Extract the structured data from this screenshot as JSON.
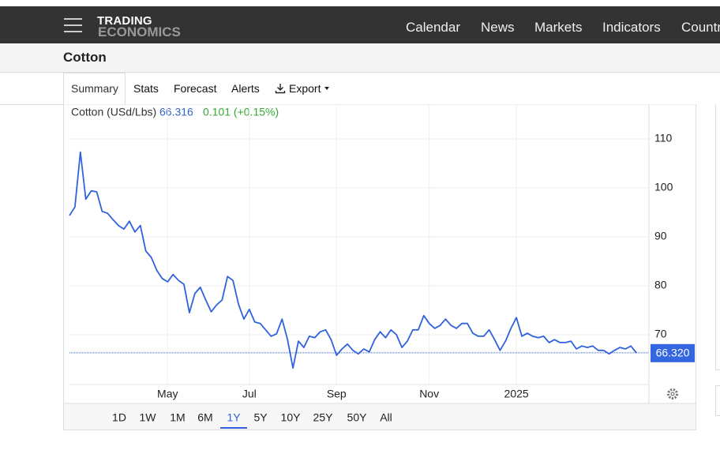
{
  "nav": {
    "logo_top": "TRADING",
    "logo_bottom": "ECONOMICS",
    "links": [
      "Calendar",
      "News",
      "Markets",
      "Indicators",
      "Countries"
    ]
  },
  "title": "Cotton",
  "tabs": [
    "Summary",
    "Stats",
    "Forecast",
    "Alerts",
    "Export"
  ],
  "selected_tab": "Summary",
  "chart_data": {
    "type": "line",
    "legend": {
      "name": "Cotton (USd/Lbs)",
      "price": "66.316",
      "change": "0.101 (+0.15%)"
    },
    "values": [
      94.35,
      96.1,
      107.3,
      97.7,
      99.4,
      99.2,
      95.2,
      94.8,
      93.5,
      92.3,
      91.6,
      93.2,
      91.0,
      92.3,
      87.1,
      85.8,
      83.2,
      81.5,
      80.8,
      82.3,
      81.1,
      80.3,
      74.5,
      78.4,
      79.7,
      77.1,
      74.7,
      76.1,
      77.1,
      81.9,
      81.1,
      76.3,
      73.2,
      75.2,
      72.6,
      72.3,
      71.0,
      69.7,
      70.2,
      73.2,
      69.0,
      63.2,
      68.7,
      67.4,
      69.7,
      69.4,
      70.6,
      71.0,
      69.0,
      65.8,
      67.1,
      68.1,
      66.8,
      66.1,
      67.1,
      66.5,
      69.0,
      70.6,
      69.4,
      71.0,
      70.0,
      67.4,
      68.7,
      71.0,
      71.0,
      73.9,
      72.3,
      71.3,
      71.9,
      73.2,
      71.9,
      71.3,
      72.3,
      72.3,
      70.3,
      69.7,
      69.7,
      71.0,
      69.0,
      66.8,
      68.7,
      71.3,
      73.5,
      69.7,
      70.3,
      69.7,
      69.4,
      69.7,
      68.4,
      69.0,
      68.4,
      68.4,
      68.7,
      67.1,
      67.7,
      67.4,
      67.7,
      66.8,
      66.8,
      66.1,
      66.8,
      67.4,
      67.1,
      67.7,
      66.32
    ],
    "color": "#2f62dc",
    "ylim": [
      60,
      115
    ],
    "yticks": [
      70,
      80,
      90,
      100,
      110
    ],
    "xticks": [
      {
        "value": 18,
        "label": "May"
      },
      {
        "value": 33,
        "label": "Jul"
      },
      {
        "value": 49,
        "label": "Sep"
      },
      {
        "value": 66,
        "label": "Nov"
      },
      {
        "value": 82,
        "label": "2025"
      }
    ],
    "last_price": {
      "value": 66.32,
      "label": "66.320"
    },
    "grid": true
  },
  "ranges": [
    "1D",
    "1W",
    "1M",
    "6M",
    "1Y",
    "5Y",
    "10Y",
    "25Y",
    "50Y",
    "All"
  ],
  "selected_range": "1Y"
}
